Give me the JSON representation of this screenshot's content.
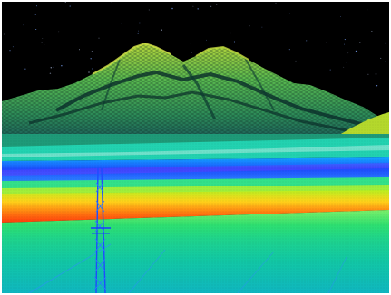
{
  "image": {
    "subject": "lidar-point-cloud",
    "colormap": "elevation-rainbow",
    "background_color": "#000000",
    "border_color": "#ffffff",
    "palette": {
      "low": "#1e64ff",
      "mid_low": "#00e5ff",
      "mid": "#30f070",
      "mid_high": "#d8f020",
      "high": "#ff4a10"
    }
  }
}
